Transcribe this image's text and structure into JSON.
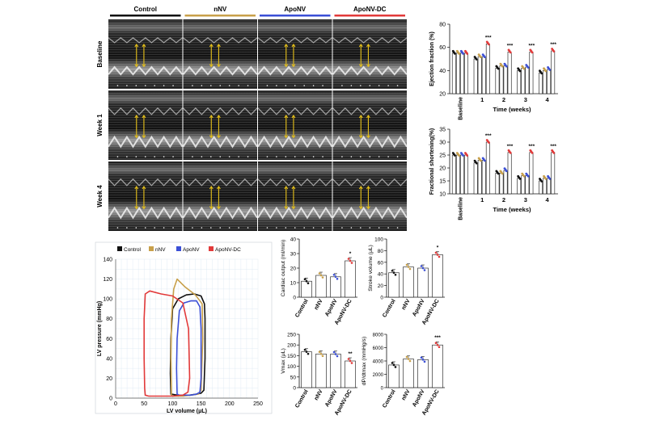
{
  "echo_panel": {
    "groups": [
      {
        "name": "Control",
        "color": "#111111"
      },
      {
        "name": "nNV",
        "color": "#c8a04a"
      },
      {
        "name": "ApoNV",
        "color": "#3b4fd6"
      },
      {
        "name": "ApoNV-DC",
        "color": "#e23a3a"
      }
    ],
    "rows": [
      "Baseline",
      "Week 1",
      "Week 4"
    ]
  },
  "chart_data": [
    {
      "type": "bar",
      "categories": [
        "Baseline",
        "1",
        "2",
        "3",
        "4"
      ],
      "xlabel": "Time (weeks)",
      "ylabel": "Ejection fraction (%)",
      "ylim": [
        20,
        80
      ],
      "yticks": [
        20,
        40,
        60,
        80
      ],
      "series": [
        {
          "name": "Control",
          "values": [
            55,
            50,
            42,
            40,
            38
          ]
        },
        {
          "name": "nNV",
          "values": [
            55,
            52,
            44,
            42,
            40
          ]
        },
        {
          "name": "ApoNV",
          "values": [
            55,
            52,
            44,
            43,
            41
          ]
        },
        {
          "name": "ApoNV-DC",
          "values": [
            55,
            63,
            56,
            56,
            57
          ]
        }
      ],
      "annotations": [
        "",
        "***",
        "***",
        "***",
        "***"
      ]
    },
    {
      "type": "bar",
      "categories": [
        "Baseline",
        "1",
        "2",
        "3",
        "4"
      ],
      "xlabel": "Time (weeks)",
      "ylabel": "Fractional shortening(%)",
      "ylim": [
        10,
        35
      ],
      "yticks": [
        10,
        15,
        20,
        25,
        30,
        35
      ],
      "series": [
        {
          "name": "Control",
          "values": [
            25,
            22,
            18,
            16,
            15
          ]
        },
        {
          "name": "nNV",
          "values": [
            25,
            23,
            18,
            17,
            16
          ]
        },
        {
          "name": "ApoNV",
          "values": [
            25,
            23,
            19,
            17,
            16
          ]
        },
        {
          "name": "ApoNV-DC",
          "values": [
            25,
            30,
            26,
            26,
            26
          ]
        }
      ],
      "annotations": [
        "",
        "***",
        "***",
        "***",
        "***"
      ]
    },
    {
      "type": "line",
      "xlabel": "LV volume (μL)",
      "ylabel": "LV pressure (mmHg)",
      "xlim": [
        0,
        250
      ],
      "ylim": [
        0,
        140
      ],
      "xticks": [
        0,
        50,
        100,
        150,
        200,
        250
      ],
      "yticks": [
        0,
        20,
        40,
        60,
        80,
        100,
        120,
        140
      ],
      "legend": "top",
      "series": [
        {
          "name": "Control",
          "color": "#111111",
          "x": [
            98,
            108,
            118,
            130,
            142,
            150,
            155,
            157,
            157,
            156,
            150,
            138,
            124,
            110,
            100,
            97,
            96,
            97
          ],
          "y": [
            4,
            3,
            3,
            3,
            4,
            5,
            8,
            40,
            80,
            95,
            103,
            105,
            104,
            100,
            90,
            60,
            25,
            4
          ]
        },
        {
          "name": "nNV",
          "color": "#c8a04a",
          "x": [
            98,
            100,
            104,
            118,
            132,
            145,
            150,
            153,
            152,
            140,
            122,
            108,
            102,
            98,
            97,
            98
          ],
          "y": [
            3,
            2,
            2,
            2,
            3,
            4,
            8,
            60,
            95,
            104,
            112,
            120,
            110,
            80,
            40,
            3
          ]
        },
        {
          "name": "ApoNV",
          "color": "#3b4fd6",
          "x": [
            108,
            112,
            120,
            132,
            142,
            148,
            150,
            150,
            148,
            142,
            132,
            120,
            112,
            108,
            107,
            108
          ],
          "y": [
            4,
            3,
            3,
            3,
            4,
            6,
            20,
            70,
            92,
            98,
            98,
            96,
            88,
            60,
            30,
            4
          ]
        },
        {
          "name": "ApoNV-DC",
          "color": "#e23a3a",
          "x": [
            52,
            58,
            80,
            100,
            118,
            127,
            130,
            128,
            118,
            100,
            80,
            60,
            52,
            50,
            50,
            51,
            52
          ],
          "y": [
            3,
            2,
            2,
            2,
            3,
            6,
            20,
            70,
            96,
            103,
            105,
            108,
            105,
            80,
            40,
            10,
            3
          ]
        }
      ]
    },
    {
      "type": "bar",
      "categories": [
        "Control",
        "nNV",
        "ApoNV",
        "ApoNV-DC"
      ],
      "ylabel": "Cardiac output (ml/min)",
      "ylim": [
        0,
        40
      ],
      "yticks": [
        0,
        10,
        20,
        30,
        40
      ],
      "values": [
        11,
        15,
        14,
        25
      ],
      "annotations": [
        "",
        "",
        "",
        "*"
      ]
    },
    {
      "type": "bar",
      "categories": [
        "Control",
        "nNV",
        "ApoNV",
        "ApoNV-DC"
      ],
      "ylabel": "Stroke volume (μL)",
      "ylim": [
        0,
        100
      ],
      "yticks": [
        0,
        20,
        40,
        60,
        80,
        100
      ],
      "values": [
        42,
        52,
        50,
        73
      ],
      "annotations": [
        "",
        "",
        "",
        "*"
      ]
    },
    {
      "type": "bar",
      "categories": [
        "Control",
        "nNV",
        "ApoNV",
        "ApoNV-DC"
      ],
      "ylabel": "Vmax (μL)",
      "ylim": [
        0,
        250
      ],
      "yticks": [
        0,
        50,
        100,
        150,
        200,
        250
      ],
      "values": [
        168,
        158,
        157,
        125
      ],
      "annotations": [
        "",
        "",
        "",
        "**"
      ]
    },
    {
      "type": "bar",
      "categories": [
        "Control",
        "nNV",
        "ApoNV",
        "ApoNV-DC"
      ],
      "ylabel": "dP/dtmax (mmHg/s)",
      "ylim": [
        0,
        8000
      ],
      "yticks": [
        0,
        2000,
        4000,
        6000,
        8000
      ],
      "values": [
        3400,
        4300,
        4200,
        6400
      ],
      "annotations": [
        "",
        "",
        "",
        "***"
      ]
    }
  ]
}
